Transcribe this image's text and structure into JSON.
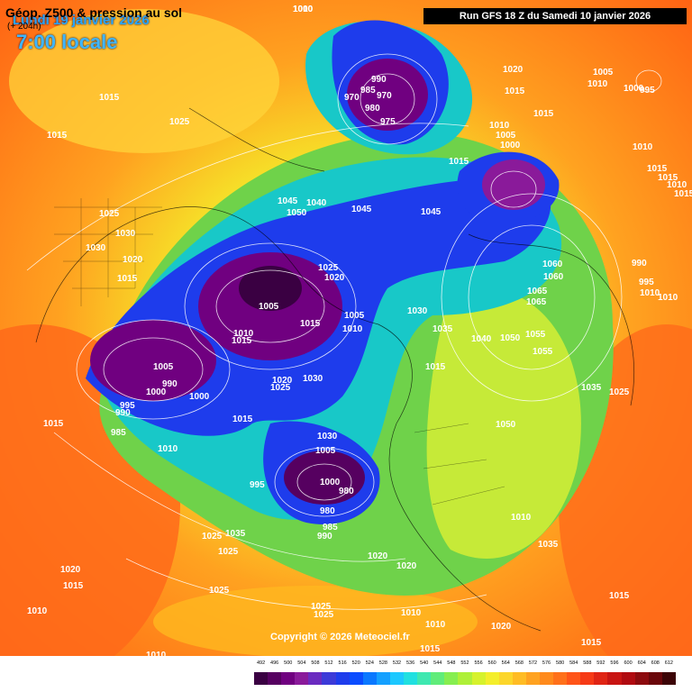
{
  "header": {
    "date": "Lundi 19 janvier 2026",
    "time": "7:00 locale",
    "run": "Run GFS 18 Z du Samedi 10 janvier 2026"
  },
  "copyright": "Copyright © 2026 Meteociel.fr",
  "footer": {
    "title": "Géop. Z500 & pression au sol",
    "subtitle": "(+ 204h)"
  },
  "colors": {
    "ocean_low": "#4a0070",
    "trough": "#0a1fb8",
    "mid": "#18c8c8",
    "green": "#6fd24a",
    "yellow": "#f5e33a",
    "orange": "#ff9a1a",
    "warm": "#ff5a12"
  },
  "scale": {
    "labels": [
      "492",
      "496",
      "500",
      "504",
      "508",
      "512",
      "516",
      "520",
      "524",
      "528",
      "532",
      "536",
      "540",
      "544",
      "548",
      "552",
      "556",
      "560",
      "564",
      "568",
      "572",
      "576",
      "580",
      "584",
      "588",
      "592",
      "596",
      "600",
      "604",
      "608",
      "612"
    ],
    "colors": [
      "#3a0042",
      "#560060",
      "#700080",
      "#8a1a9a",
      "#6a2ac0",
      "#3c3ad8",
      "#1e3cec",
      "#0a4cff",
      "#0a78ff",
      "#14a0ff",
      "#1cc8ff",
      "#20e0e0",
      "#3ee8b0",
      "#60ec7a",
      "#86ee50",
      "#aef038",
      "#d6f22c",
      "#f4ee2a",
      "#fcd62a",
      "#ffbc24",
      "#ffa220",
      "#ff8a1c",
      "#ff701a",
      "#ff5418",
      "#f63a16",
      "#e02414",
      "#c81412",
      "#b00a10",
      "#8c0a0e",
      "#6a060a",
      "#3c0406"
    ]
  },
  "pressure_labels": [
    "1000",
    "1015",
    "1025",
    "1015",
    "1025",
    "1030",
    "1020",
    "1015",
    "1030",
    "990",
    "985",
    "970",
    "980",
    "975",
    "970",
    "1020",
    "1015",
    "1005",
    "1000",
    "995",
    "1010",
    "1010",
    "1005",
    "1000",
    "1010",
    "1015",
    "1015",
    "1010",
    "1015",
    "1015",
    "1015",
    "1045",
    "1040",
    "1050",
    "1045",
    "1045",
    "1025",
    "1020",
    "1005",
    "1015",
    "1005",
    "1010",
    "1010",
    "1015",
    "1020",
    "1030",
    "1025",
    "1030",
    "1035",
    "1005",
    "1000",
    "990",
    "1000",
    "995",
    "990",
    "985",
    "1010",
    "1015",
    "1060",
    "1060",
    "1065",
    "1065",
    "1055",
    "1055",
    "1035",
    "1025",
    "1050",
    "1040",
    "1050",
    "990",
    "995",
    "1010",
    "1010",
    "1015",
    "1030",
    "1005",
    "1000",
    "980",
    "980",
    "985",
    "990",
    "995",
    "1010",
    "1035",
    "1025",
    "1025",
    "1020",
    "1020",
    "1015",
    "1020",
    "1010",
    "1010",
    "1025",
    "1025",
    "1025",
    "1035",
    "1015",
    "1020",
    "1015",
    "1010",
    "1010",
    "1015",
    "1015",
    "1010"
  ]
}
